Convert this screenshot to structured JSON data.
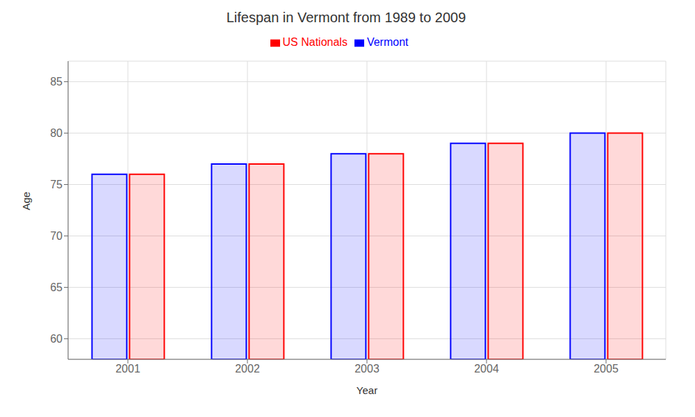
{
  "chart_data": {
    "type": "bar",
    "title": "Lifespan in Vermont from 1989 to 2009",
    "x_label": "Year",
    "y_label": "Age",
    "categories": [
      "2001",
      "2002",
      "2003",
      "2004",
      "2005"
    ],
    "series": [
      {
        "name": "Vermont",
        "color": "#0000ff",
        "values": [
          76,
          77,
          78,
          79,
          80
        ]
      },
      {
        "name": "US Nationals",
        "color": "#ff0000",
        "values": [
          76,
          77,
          78,
          79,
          80
        ]
      }
    ],
    "ylim": [
      58,
      87
    ],
    "yticks": [
      60,
      65,
      70,
      75,
      80,
      85
    ],
    "grid": true,
    "legend": "top"
  }
}
